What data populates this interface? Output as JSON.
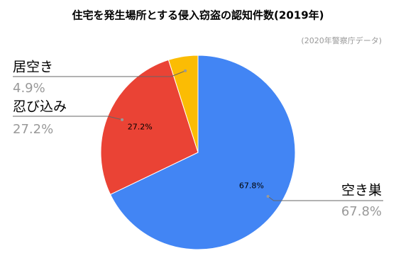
{
  "chart_data": {
    "type": "pie",
    "title": "住宅を発生場所とする侵入窃盗の認知件数(2019年)",
    "subtitle": "(2020年警察庁データ)",
    "categories": [
      "空き巣",
      "忍び込み",
      "居空き"
    ],
    "values": [
      67.8,
      27.2,
      4.9
    ],
    "value_labels": [
      "67.8%",
      "27.2%",
      "4.9%"
    ],
    "colors": [
      "#4285f4",
      "#ea4335",
      "#fbbc04"
    ]
  }
}
